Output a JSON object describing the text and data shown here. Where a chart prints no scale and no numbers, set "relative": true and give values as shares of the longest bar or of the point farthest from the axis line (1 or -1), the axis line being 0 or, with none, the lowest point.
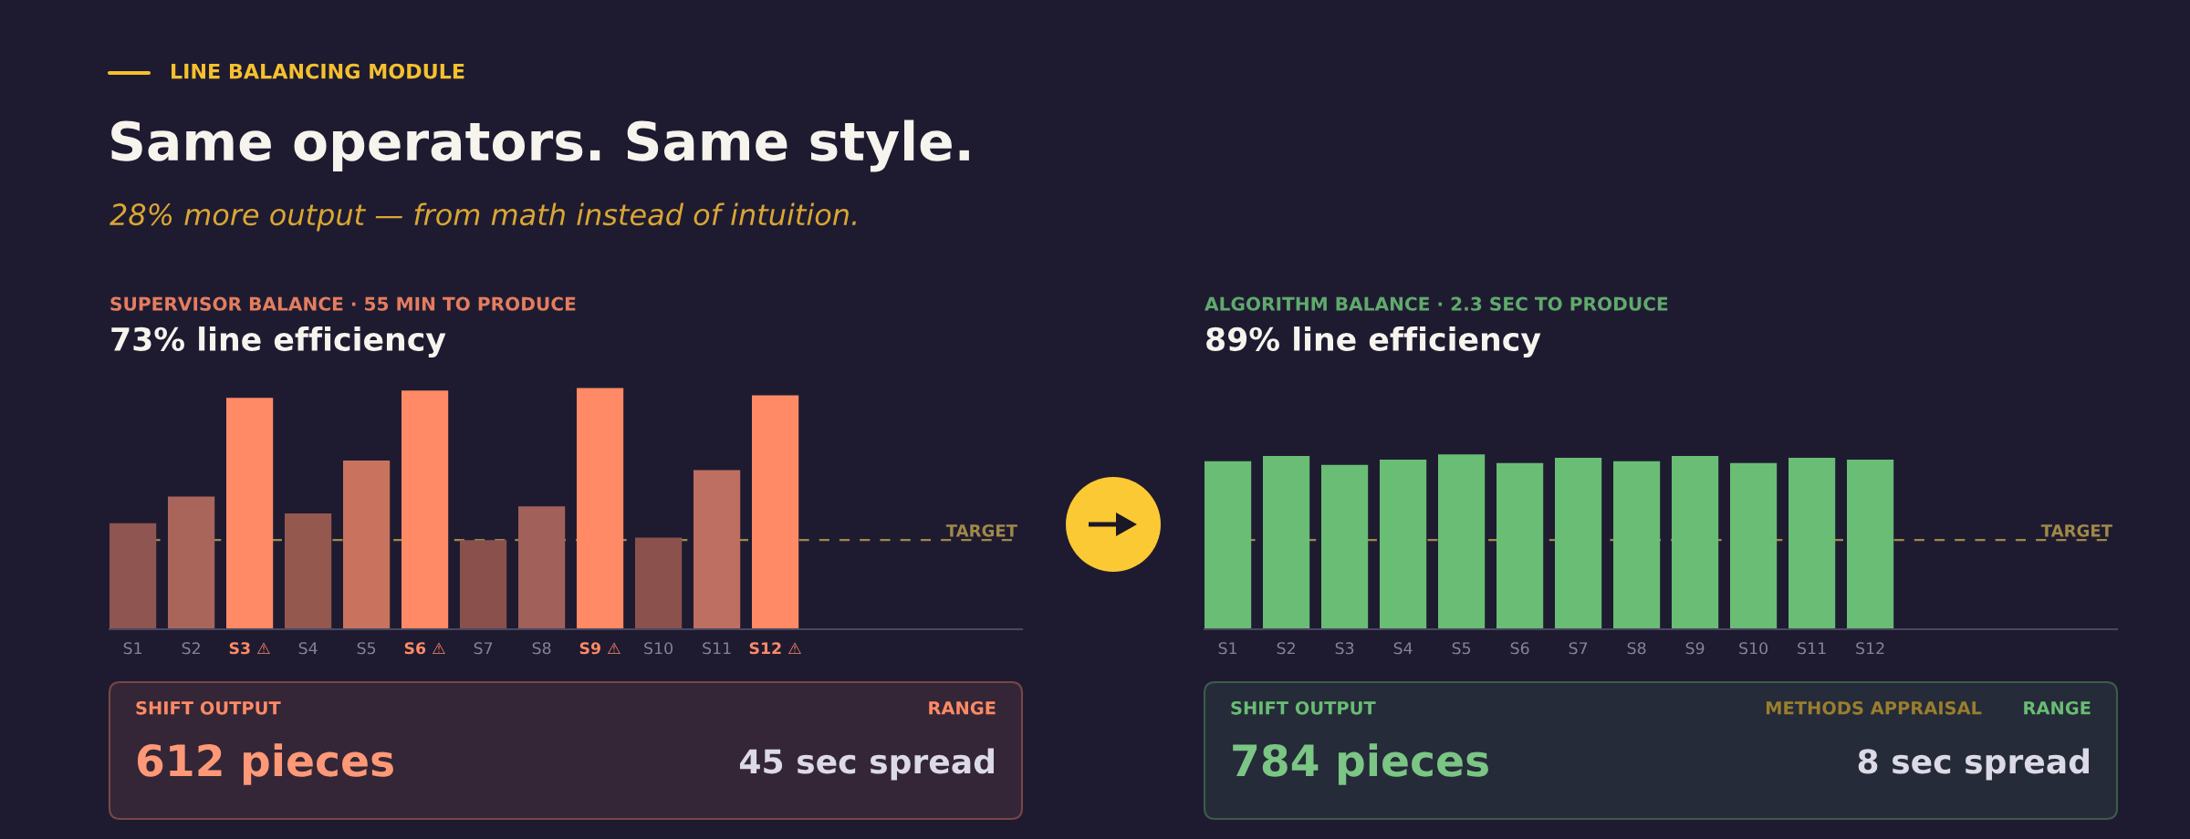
{
  "chart_data": [
    {
      "type": "other",
      "title": "Same operators. Same style.",
      "subtitle": "28% more output — from math instead of intuition.",
      "annotations": [
        "LINE BALANCING MODULE"
      ]
    },
    {
      "type": "bar",
      "subtitle": "SUPERVISOR BALANCE · 55 MIN TO PRODUCE",
      "title": "73% line efficiency",
      "categories": [
        "S1",
        "S2",
        "S3 ⚠",
        "S4",
        "S5",
        "S6 ⚠",
        "S7",
        "S8",
        "S9 ⚠",
        "S10",
        "S11",
        "S12 ⚠"
      ],
      "values": [
        0.44,
        0.55,
        0.96,
        0.48,
        0.7,
        0.99,
        0.37,
        0.51,
        1.0,
        0.38,
        0.66,
        0.97
      ],
      "colors": [
        "#8f5550",
        "#aa655b",
        "#ff8a65",
        "#95584f",
        "#c9735f",
        "#ff8a65",
        "#8a514c",
        "#a2605a",
        "#ff8a65",
        "#8b524d",
        "#bf6f61",
        "#ff8a65"
      ],
      "relative": true,
      "ref_lines": [
        {
          "axis": "y",
          "value": 0.37,
          "label": "TARGET",
          "color": "#a08848",
          "line_style": "dashed"
        }
      ],
      "annotations": [
        "SHIFT OUTPUT",
        "612 pieces",
        "RANGE",
        "45 sec spread"
      ]
    },
    {
      "type": "bar",
      "subtitle": "ALGORITHM BALANCE · 2.3 SEC TO PRODUCE",
      "title": "89% line efficiency",
      "categories": [
        "S1",
        "S2",
        "S3",
        "S4",
        "S5",
        "S6",
        "S7",
        "S8",
        "S9",
        "S10",
        "S11",
        "S12"
      ],
      "values": [
        0.96,
        0.99,
        0.94,
        0.97,
        1.0,
        0.95,
        0.98,
        0.96,
        0.99,
        0.95,
        0.98,
        0.97
      ],
      "color": "#69bd74",
      "relative": true,
      "ref_lines": [
        {
          "axis": "y",
          "value": 0.51,
          "label": "TARGET",
          "color": "#a08848",
          "line_style": "dashed"
        }
      ],
      "annotations": [
        "SHIFT OUTPUT",
        "784 pieces",
        "METHODS APPRAISAL",
        "RANGE",
        "8 sec spread"
      ]
    }
  ]
}
